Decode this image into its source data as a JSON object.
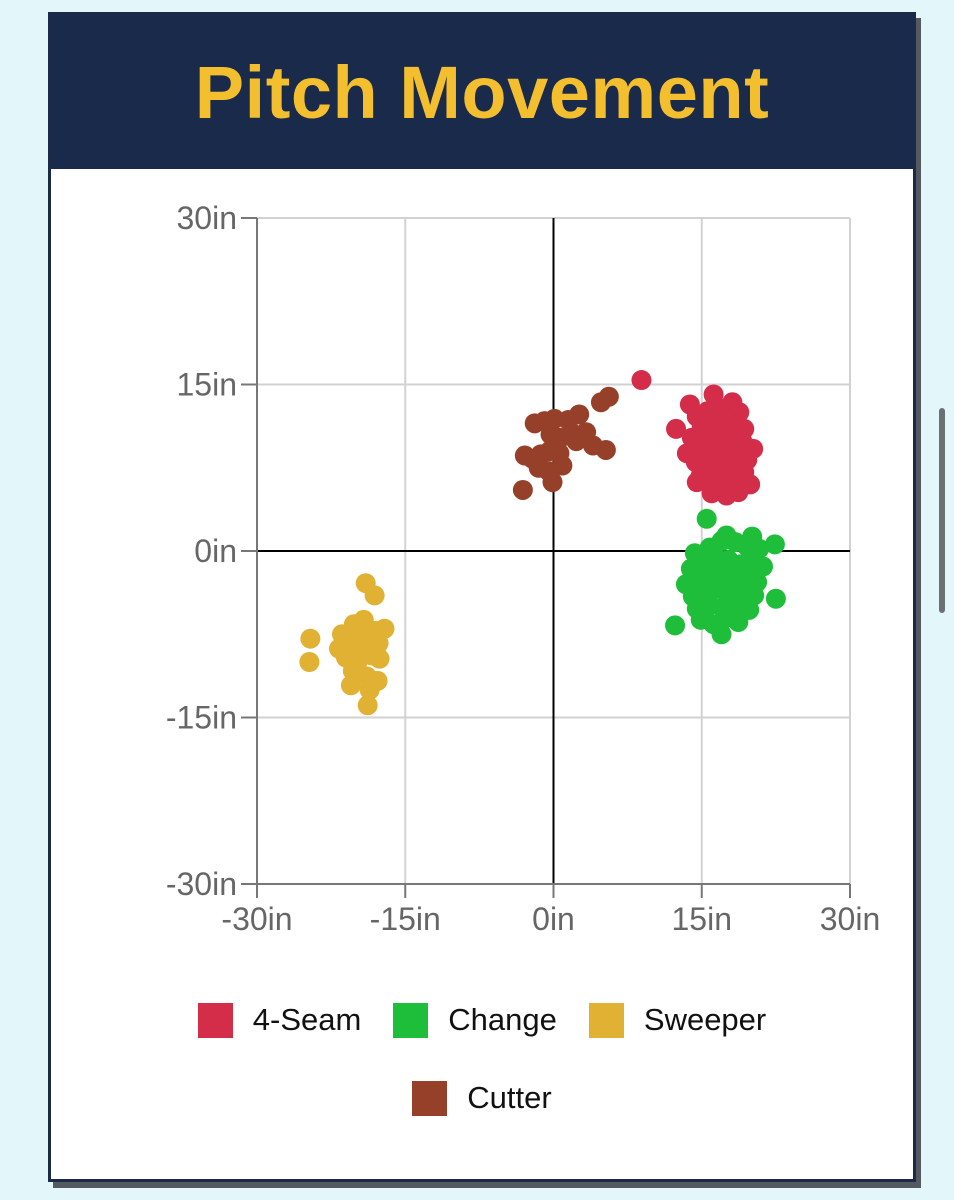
{
  "title": "Pitch Movement",
  "colors": {
    "header_bg": "#1a2a4b",
    "title": "#f3bf2f",
    "four_seam": "#d32d4a",
    "change": "#1fbe3a",
    "sweeper": "#e0b133",
    "cutter": "#96402a"
  },
  "chart_data": {
    "type": "scatter",
    "title": "Pitch Movement",
    "xlabel": "",
    "ylabel": "",
    "xlim": [
      -30,
      30
    ],
    "ylim": [
      -30,
      30
    ],
    "x_ticks": [
      "-30in",
      "-15in",
      "0in",
      "15in",
      "30in"
    ],
    "y_ticks": [
      "30in",
      "15in",
      "0in",
      "-15in",
      "-30in"
    ],
    "grid": true,
    "legend_position": "bottom",
    "series": [
      {
        "name": "4-Seam",
        "color": "#d32d4a",
        "points": [
          [
            8.9,
            15.4
          ],
          [
            13.8,
            13.2
          ],
          [
            16.2,
            14.1
          ],
          [
            18.1,
            13.4
          ],
          [
            12.4,
            11.0
          ],
          [
            14.5,
            12.1
          ],
          [
            15.6,
            12.6
          ],
          [
            17.0,
            12.8
          ],
          [
            18.8,
            12.5
          ],
          [
            14.0,
            10.2
          ],
          [
            15.0,
            11.2
          ],
          [
            16.4,
            11.6
          ],
          [
            17.6,
            11.4
          ],
          [
            19.3,
            11.0
          ],
          [
            13.5,
            8.8
          ],
          [
            14.8,
            9.6
          ],
          [
            15.9,
            10.2
          ],
          [
            16.9,
            10.4
          ],
          [
            18.0,
            10.3
          ],
          [
            19.1,
            9.9
          ],
          [
            20.2,
            9.2
          ],
          [
            14.4,
            8.0
          ],
          [
            15.5,
            8.6
          ],
          [
            16.6,
            9.1
          ],
          [
            17.4,
            8.9
          ],
          [
            18.5,
            8.6
          ],
          [
            19.6,
            8.2
          ],
          [
            14.9,
            6.8
          ],
          [
            16.0,
            7.6
          ],
          [
            17.0,
            7.9
          ],
          [
            18.1,
            7.5
          ],
          [
            19.3,
            7.1
          ],
          [
            14.5,
            6.2
          ],
          [
            16.2,
            6.4
          ],
          [
            17.3,
            6.3
          ],
          [
            18.3,
            6.1
          ],
          [
            19.9,
            6.0
          ],
          [
            16.0,
            5.2
          ],
          [
            17.5,
            5.0
          ],
          [
            18.7,
            5.3
          ],
          [
            16.8,
            5.8
          ],
          [
            15.3,
            7.2
          ]
        ]
      },
      {
        "name": "Change",
        "color": "#1fbe3a",
        "points": [
          [
            15.5,
            2.9
          ],
          [
            17.5,
            1.4
          ],
          [
            20.1,
            1.3
          ],
          [
            22.4,
            0.6
          ],
          [
            14.3,
            -0.2
          ],
          [
            15.8,
            0.3
          ],
          [
            17.0,
            0.9
          ],
          [
            18.4,
            0.8
          ],
          [
            19.6,
            0.4
          ],
          [
            20.8,
            0.2
          ],
          [
            13.9,
            -1.6
          ],
          [
            15.1,
            -1.1
          ],
          [
            16.4,
            -0.6
          ],
          [
            17.7,
            -0.8
          ],
          [
            18.9,
            -1.2
          ],
          [
            20.2,
            -1.0
          ],
          [
            21.2,
            -1.4
          ],
          [
            13.4,
            -3.0
          ],
          [
            14.6,
            -2.4
          ],
          [
            15.9,
            -2.1
          ],
          [
            17.1,
            -2.0
          ],
          [
            18.3,
            -2.5
          ],
          [
            19.5,
            -2.2
          ],
          [
            20.6,
            -2.8
          ],
          [
            14.1,
            -4.1
          ],
          [
            15.3,
            -3.6
          ],
          [
            16.6,
            -3.4
          ],
          [
            17.9,
            -3.8
          ],
          [
            19.1,
            -3.5
          ],
          [
            20.3,
            -4.0
          ],
          [
            22.5,
            -4.3
          ],
          [
            14.5,
            -5.2
          ],
          [
            15.8,
            -4.9
          ],
          [
            17.1,
            -5.1
          ],
          [
            18.5,
            -4.7
          ],
          [
            19.8,
            -5.3
          ],
          [
            12.3,
            -6.7
          ],
          [
            14.9,
            -6.2
          ],
          [
            16.2,
            -6.6
          ],
          [
            17.5,
            -6.0
          ],
          [
            18.7,
            -6.4
          ],
          [
            17.0,
            -7.5
          ]
        ]
      },
      {
        "name": "Sweeper",
        "color": "#e0b133",
        "points": [
          [
            -19.0,
            -2.9
          ],
          [
            -18.1,
            -4.0
          ],
          [
            -24.6,
            -7.9
          ],
          [
            -24.7,
            -10.0
          ],
          [
            -21.4,
            -7.5
          ],
          [
            -20.2,
            -6.6
          ],
          [
            -19.2,
            -6.2
          ],
          [
            -18.0,
            -7.2
          ],
          [
            -17.1,
            -7.0
          ],
          [
            -21.7,
            -8.8
          ],
          [
            -20.6,
            -8.2
          ],
          [
            -19.6,
            -8.0
          ],
          [
            -18.6,
            -8.6
          ],
          [
            -17.7,
            -8.3
          ],
          [
            -21.0,
            -9.6
          ],
          [
            -19.8,
            -9.9
          ],
          [
            -18.4,
            -9.4
          ],
          [
            -17.6,
            -9.7
          ],
          [
            -20.3,
            -10.8
          ],
          [
            -18.9,
            -11.3
          ],
          [
            -17.8,
            -11.7
          ],
          [
            -20.5,
            -12.1
          ],
          [
            -18.6,
            -12.5
          ],
          [
            -18.8,
            -13.9
          ],
          [
            -19.5,
            -7.4
          ],
          [
            -20.0,
            -9.0
          ]
        ]
      },
      {
        "name": "Cutter",
        "color": "#96402a",
        "points": [
          [
            5.6,
            13.9
          ],
          [
            4.8,
            13.4
          ],
          [
            -1.9,
            11.5
          ],
          [
            -0.9,
            11.7
          ],
          [
            0.1,
            11.9
          ],
          [
            1.5,
            11.8
          ],
          [
            2.6,
            12.3
          ],
          [
            3.3,
            10.7
          ],
          [
            -0.3,
            10.5
          ],
          [
            0.7,
            10.2
          ],
          [
            1.9,
            10.6
          ],
          [
            2.3,
            9.9
          ],
          [
            4.0,
            9.5
          ],
          [
            5.3,
            9.1
          ],
          [
            -2.9,
            8.6
          ],
          [
            -2.1,
            8.3
          ],
          [
            -1.3,
            8.7
          ],
          [
            -0.4,
            9.0
          ],
          [
            0.6,
            8.8
          ],
          [
            0.9,
            7.7
          ],
          [
            -1.5,
            7.5
          ],
          [
            -0.5,
            7.2
          ],
          [
            -0.1,
            6.2
          ],
          [
            -3.1,
            5.5
          ]
        ]
      }
    ]
  },
  "legend": [
    {
      "label": "4-Seam",
      "color": "#d32d4a"
    },
    {
      "label": "Change",
      "color": "#1fbe3a"
    },
    {
      "label": "Sweeper",
      "color": "#e0b133"
    },
    {
      "label": "Cutter",
      "color": "#96402a"
    }
  ]
}
